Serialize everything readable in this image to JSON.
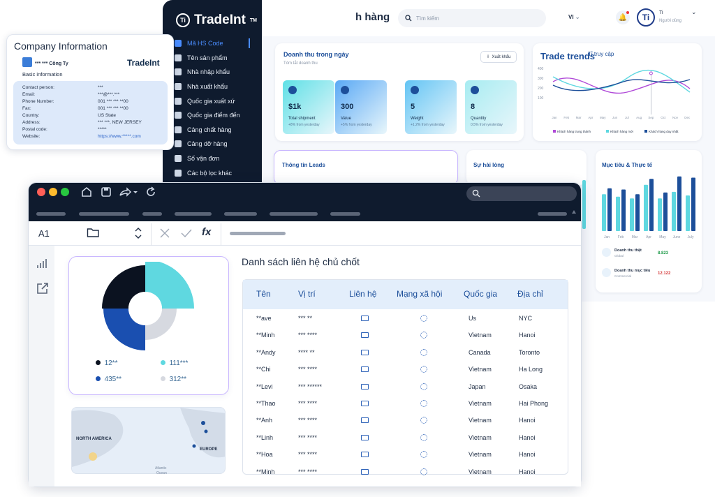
{
  "sidebar": {
    "logo": "TradeInt",
    "logo_mark": "Ti",
    "items": [
      {
        "label": "Mã HS Code",
        "active": true
      },
      {
        "label": "Tên sản phẩm"
      },
      {
        "label": "Nhà nhập khẩu"
      },
      {
        "label": "Nhà xuất khẩu"
      },
      {
        "label": "Quốc gia xuất xứ"
      },
      {
        "label": "Quốc gia điểm đến"
      },
      {
        "label": "Cảng chất hàng"
      },
      {
        "label": "Cảng dỡ hàng"
      },
      {
        "label": "Số vận đơn"
      },
      {
        "label": "Các bộ lọc khác"
      }
    ]
  },
  "header": {
    "title": "h hàng",
    "search_placeholder": "Tìm kiếm",
    "language": "VI",
    "avatar": "Ti",
    "user_name": "Ti",
    "user_role": "Người dùng"
  },
  "revenue": {
    "title": "Doanh thu trong ngày",
    "subtitle": "Tóm tắt doanh thu",
    "export_label": "Xuất khẩu",
    "stats": [
      {
        "value": "$1k",
        "label": "Total shipment",
        "change": "+8% from yesterday",
        "color": "#5fe0e6"
      },
      {
        "value": "300",
        "label": "Value",
        "change": "+5% from yesterday",
        "color": "#5aa9f5"
      },
      {
        "value": "5",
        "label": "Weight",
        "change": "+1.2% from yesterday",
        "color": "#63c4f4"
      },
      {
        "value": "8",
        "label": "Quantity",
        "change": "0.5% from yesterday",
        "color": "#a7ecf1"
      }
    ]
  },
  "trend": {
    "title": "Trade trends",
    "subtitle": "Tỉ truy cập",
    "y_ticks": [
      "400",
      "300",
      "200",
      "100"
    ],
    "months": [
      "Jan",
      "Feb",
      "Mar",
      "Apr",
      "May",
      "Jun",
      "Jul",
      "Aug",
      "Sep",
      "Oct",
      "Nov",
      "Dec"
    ],
    "legend": [
      "Khách hàng trung thành",
      "Khách hàng mới",
      "Khách hàng duy nhất"
    ],
    "colors": [
      "#b04ad8",
      "#5fd8e0",
      "#1d4f9a"
    ]
  },
  "leads": {
    "title": "Thông tin Leads"
  },
  "satisfaction": {
    "title": "Sự hài lòng"
  },
  "goals": {
    "title": "Mục tiêu & Thực tế",
    "months": [
      "Jan",
      "Feb",
      "Mar",
      "Apr",
      "May",
      "June",
      "July"
    ],
    "reality": [
      0.62,
      0.58,
      0.55,
      0.78,
      0.55,
      0.66,
      0.6
    ],
    "target": [
      0.72,
      0.7,
      0.62,
      0.88,
      0.65,
      0.92,
      0.9
    ],
    "legend": [
      {
        "label": "Doanh thu thật",
        "sub": "Global",
        "value": "8.823",
        "color": "#1f9a4a"
      },
      {
        "label": "Doanh thu mục tiêu",
        "sub": "Commercial",
        "value": "12.122",
        "color": "#d53a3a"
      }
    ]
  },
  "company": {
    "title": "Company Information",
    "name": "*** *** Công Ty",
    "logo": "TradeInt",
    "basic": "Basic information",
    "rows": [
      {
        "label": "Contact person:",
        "value": "***"
      },
      {
        "label": "Email:",
        "value": "***@***.***"
      },
      {
        "label": "Phone Number:",
        "value": "001 *** *** **00"
      },
      {
        "label": "Fax:",
        "value": "001 *** *** **00"
      },
      {
        "label": "Country:",
        "value": "US State"
      },
      {
        "label": "Address:",
        "value": "*** ***, NEW JERSEY"
      },
      {
        "label": "Postal code:",
        "value": "*****"
      },
      {
        "label": "Website:",
        "value": "https://www.*****.com",
        "link": true
      }
    ]
  },
  "sheet": {
    "cell_ref": "A1",
    "fx": "fx",
    "table_title": "Danh sách liên hệ chủ chốt",
    "columns": [
      "Tên",
      "Vị trí",
      "Liên hệ",
      "Mạng xã hội",
      "Quốc gia",
      "Địa chỉ"
    ],
    "rows": [
      [
        "**ave",
        "*** **",
        "Us",
        "NYC"
      ],
      [
        "**Minh",
        "*** ****",
        "Vietnam",
        "Hanoi"
      ],
      [
        "**Andy",
        "**** **",
        "Canada",
        "Toronto"
      ],
      [
        "**Chi",
        "*** ****",
        "Vietnam",
        "Ha Long"
      ],
      [
        "**Levi",
        "*** ******",
        "Japan",
        "Osaka"
      ],
      [
        "**Thao",
        "*** ****",
        "Vietnam",
        "Hai Phong"
      ],
      [
        "**Anh",
        "*** ****",
        "Vietnam",
        "Hanoi"
      ],
      [
        "**Linh",
        "*** ****",
        "Vietnam",
        "Hanoi"
      ],
      [
        "**Hoa",
        "*** ****",
        "Vietnam",
        "Hanoi"
      ],
      [
        "**Minh",
        "*** ****",
        "Vietnam",
        "Hanoi"
      ]
    ]
  },
  "donut": {
    "legend": [
      {
        "label": "12**",
        "color": "#0b1220"
      },
      {
        "label": "111***",
        "color": "#5fd8e0"
      },
      {
        "label": "435**",
        "color": "#1a4fb0"
      },
      {
        "label": "312**",
        "color": "#d6d9e0"
      }
    ]
  },
  "map": {
    "labels": [
      "NORTH AMERICA",
      "EUROPE",
      "Atlantic",
      "Ocean"
    ]
  }
}
